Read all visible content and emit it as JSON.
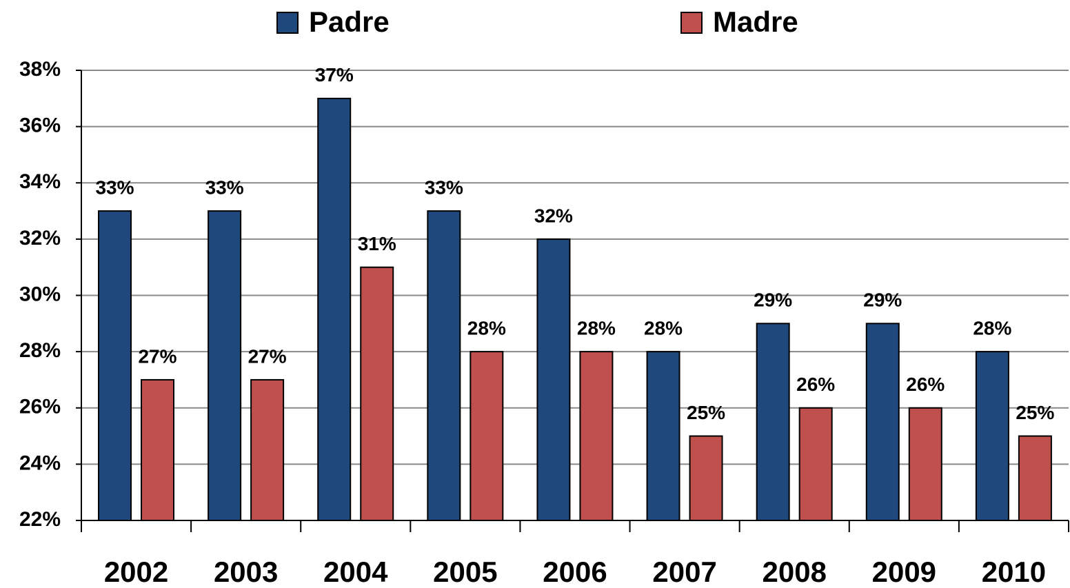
{
  "chart_data": {
    "type": "bar",
    "categories": [
      "2002",
      "2003",
      "2004",
      "2005",
      "2006",
      "2007",
      "2008",
      "2009",
      "2010"
    ],
    "series": [
      {
        "name": "Padre",
        "color": "#1f497d",
        "values": [
          33,
          33,
          37,
          33,
          32,
          28,
          29,
          29,
          28
        ],
        "value_labels": [
          "33%",
          "33%",
          "37%",
          "33%",
          "32%",
          "28%",
          "29%",
          "29%",
          "28%"
        ]
      },
      {
        "name": "Madre",
        "color": "#c0504d",
        "values": [
          27,
          27,
          31,
          28,
          28,
          25,
          26,
          26,
          25
        ],
        "value_labels": [
          "27%",
          "27%",
          "31%",
          "28%",
          "28%",
          "25%",
          "26%",
          "26%",
          "25%"
        ]
      }
    ],
    "ylim": [
      22,
      38
    ],
    "yticks": [
      {
        "value": 22,
        "label": "22%"
      },
      {
        "value": 24,
        "label": "24%"
      },
      {
        "value": 26,
        "label": "26%"
      },
      {
        "value": 28,
        "label": "28%"
      },
      {
        "value": 30,
        "label": "30%"
      },
      {
        "value": 32,
        "label": "32%"
      },
      {
        "value": 34,
        "label": "34%"
      },
      {
        "value": 36,
        "label": "36%"
      },
      {
        "value": 38,
        "label": "38%"
      }
    ],
    "grid": true,
    "legend": "top"
  }
}
